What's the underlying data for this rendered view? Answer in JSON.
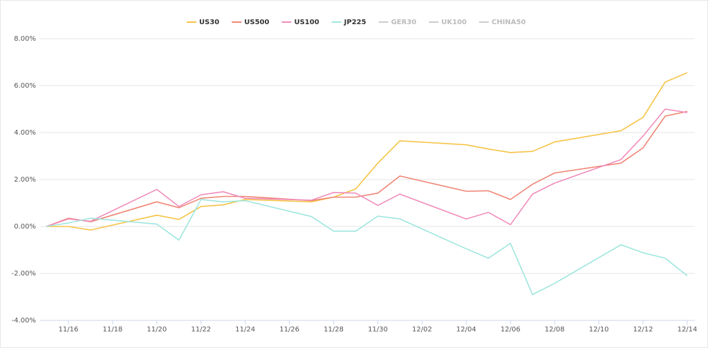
{
  "chart_data": {
    "type": "line",
    "x": [
      "11/15",
      "11/16",
      "11/17",
      "11/20",
      "11/21",
      "11/22",
      "11/23",
      "11/24",
      "11/27",
      "11/28",
      "11/29",
      "11/30",
      "12/01",
      "12/04",
      "12/05",
      "12/06",
      "12/07",
      "12/08",
      "12/11",
      "12/12",
      "12/13",
      "12/14"
    ],
    "series": [
      {
        "name": "US30",
        "color": "#f5c344",
        "values": [
          0,
          0.0,
          -0.15,
          0.48,
          0.3,
          0.85,
          0.92,
          1.15,
          1.05,
          1.25,
          1.6,
          2.7,
          3.65,
          3.48,
          3.3,
          3.15,
          3.2,
          3.6,
          4.08,
          4.65,
          6.15,
          6.55
        ]
      },
      {
        "name": "US500",
        "color": "#ef8473",
        "values": [
          0,
          0.35,
          0.2,
          1.05,
          0.8,
          1.2,
          1.28,
          1.28,
          1.1,
          1.25,
          1.25,
          1.42,
          2.15,
          1.5,
          1.52,
          1.15,
          1.8,
          2.28,
          2.7,
          3.35,
          4.7,
          4.9
        ]
      },
      {
        "name": "US100",
        "color": "#f08cba",
        "values": [
          0,
          0.32,
          0.22,
          1.58,
          0.85,
          1.35,
          1.48,
          1.2,
          1.12,
          1.45,
          1.42,
          0.9,
          1.38,
          0.32,
          0.6,
          0.08,
          1.38,
          1.85,
          2.85,
          3.85,
          5.0,
          4.85
        ]
      },
      {
        "name": "JP225",
        "color": "#9ee6de",
        "values": [
          0,
          0.15,
          0.35,
          0.1,
          -0.58,
          1.15,
          1.05,
          1.1,
          0.42,
          -0.2,
          -0.2,
          0.44,
          0.32,
          -0.95,
          -1.35,
          -0.72,
          -2.9,
          -2.42,
          -0.78,
          -1.12,
          -1.35,
          -2.1
        ]
      }
    ],
    "hidden_legend": [
      "GER30",
      "UK100",
      "CHINA50"
    ],
    "ylim": [
      -4,
      8
    ],
    "yticks": [
      {
        "value": -4,
        "label": "-4.00%"
      },
      {
        "value": -2,
        "label": "-2.00%"
      },
      {
        "value": 0,
        "label": "0.00%"
      },
      {
        "value": 2,
        "label": "2.00%"
      },
      {
        "value": 4,
        "label": "4.00%"
      },
      {
        "value": 6,
        "label": "6.00%"
      },
      {
        "value": 8,
        "label": "8.00%"
      }
    ],
    "xticks": [
      "11/16",
      "11/18",
      "11/20",
      "11/22",
      "11/24",
      "11/26",
      "11/28",
      "11/30",
      "12/02",
      "12/04",
      "12/06",
      "12/08",
      "12/10",
      "12/12",
      "12/14"
    ],
    "grid": true
  }
}
